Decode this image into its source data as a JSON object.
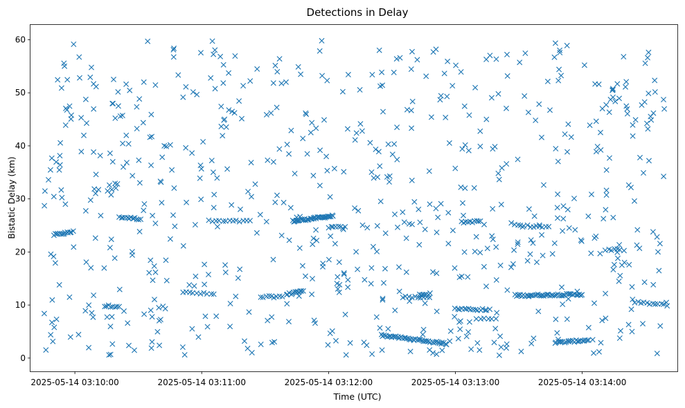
{
  "chart_data": {
    "type": "scatter",
    "title": "Detections in Delay",
    "xlabel": "Time (UTC)",
    "ylabel": "Bistatic Delay (km)",
    "marker": "x",
    "color": "#1f77b4",
    "xlim": [
      "2025-05-14 03:09:39",
      "2025-05-14 03:14:45"
    ],
    "ylim": [
      -2.5,
      62.8
    ],
    "x_ticks": [
      "2025-05-14 03:10:00",
      "2025-05-14 03:11:00",
      "2025-05-14 03:12:00",
      "2025-05-14 03:13:00",
      "2025-05-14 03:14:00"
    ],
    "y_ticks": [
      0,
      10,
      20,
      30,
      40,
      50,
      60
    ],
    "grid": false,
    "series": [
      {
        "tracks": [
          {
            "x_start": "2025-05-14 03:09:50",
            "x_end": "2025-05-14 03:09:59",
            "y_start": 23.2,
            "y_end": 23.8,
            "count": 14
          },
          {
            "x_start": "2025-05-14 03:10:21",
            "x_end": "2025-05-14 03:10:31",
            "y_start": 26.6,
            "y_end": 26.2,
            "count": 12
          },
          {
            "x_start": "2025-05-14 03:10:14",
            "x_end": "2025-05-14 03:10:21",
            "y_start": 9.8,
            "y_end": 9.8,
            "count": 8
          },
          {
            "x_start": "2025-05-14 03:10:51",
            "x_end": "2025-05-14 03:11:06",
            "y_start": 12.4,
            "y_end": 12.0,
            "count": 10
          },
          {
            "x_start": "2025-05-14 03:11:05",
            "x_end": "2025-05-14 03:11:23",
            "y_start": 25.8,
            "y_end": 25.8,
            "count": 12
          },
          {
            "x_start": "2025-05-14 03:11:28",
            "x_end": "2025-05-14 03:11:38",
            "y_start": 11.5,
            "y_end": 11.6,
            "count": 9
          },
          {
            "x_start": "2025-05-14 03:11:43",
            "x_end": "2025-05-14 03:12:02",
            "y_start": 25.8,
            "y_end": 26.8,
            "count": 40
          },
          {
            "x_start": "2025-05-14 03:11:40",
            "x_end": "2025-05-14 03:11:48",
            "y_start": 12.0,
            "y_end": 12.6,
            "count": 12
          },
          {
            "x_start": "2025-05-14 03:12:00",
            "x_end": "2025-05-14 03:12:08",
            "y_start": 24.7,
            "y_end": 24.6,
            "count": 8
          },
          {
            "x_start": "2025-05-14 03:12:35",
            "x_end": "2025-05-14 03:12:48",
            "y_start": 11.5,
            "y_end": 11.5,
            "count": 10
          },
          {
            "x_start": "2025-05-14 03:12:25",
            "x_end": "2025-05-14 03:12:56",
            "y_start": 4.3,
            "y_end": 2.7,
            "count": 45
          },
          {
            "x_start": "2025-05-14 03:12:43",
            "x_end": "2025-05-14 03:12:48",
            "y_start": 12.0,
            "y_end": 12.1,
            "count": 7
          },
          {
            "x_start": "2025-05-14 03:13:00",
            "x_end": "2025-05-14 03:13:16",
            "y_start": 9.3,
            "y_end": 9.1,
            "count": 16
          },
          {
            "x_start": "2025-05-14 03:13:03",
            "x_end": "2025-05-14 03:13:12",
            "y_start": 25.6,
            "y_end": 25.8,
            "count": 10
          },
          {
            "x_start": "2025-05-14 03:13:10",
            "x_end": "2025-05-14 03:13:19",
            "y_start": 7.4,
            "y_end": 7.4,
            "count": 6
          },
          {
            "x_start": "2025-05-14 03:13:28",
            "x_end": "2025-05-14 03:14:00",
            "y_start": 11.8,
            "y_end": 12.0,
            "count": 45
          },
          {
            "x_start": "2025-05-14 03:13:47",
            "x_end": "2025-05-14 03:14:03",
            "y_start": 2.9,
            "y_end": 3.4,
            "count": 22
          },
          {
            "x_start": "2025-05-14 03:14:11",
            "x_end": "2025-05-14 03:14:18",
            "y_start": 20.4,
            "y_end": 20.5,
            "count": 6
          },
          {
            "x_start": "2025-05-14 03:13:28",
            "x_end": "2025-05-14 03:13:44",
            "y_start": 25.0,
            "y_end": 24.7,
            "count": 12
          },
          {
            "x_start": "2025-05-14 03:14:25",
            "x_end": "2025-05-14 03:14:40",
            "y_start": 10.5,
            "y_end": 10.0,
            "count": 12
          }
        ],
        "scattered": {
          "count": 700,
          "x_range": [
            "2025-05-14 03:09:45",
            "2025-05-14 03:14:40"
          ],
          "y_range": [
            0.5,
            60.0
          ]
        }
      }
    ]
  }
}
